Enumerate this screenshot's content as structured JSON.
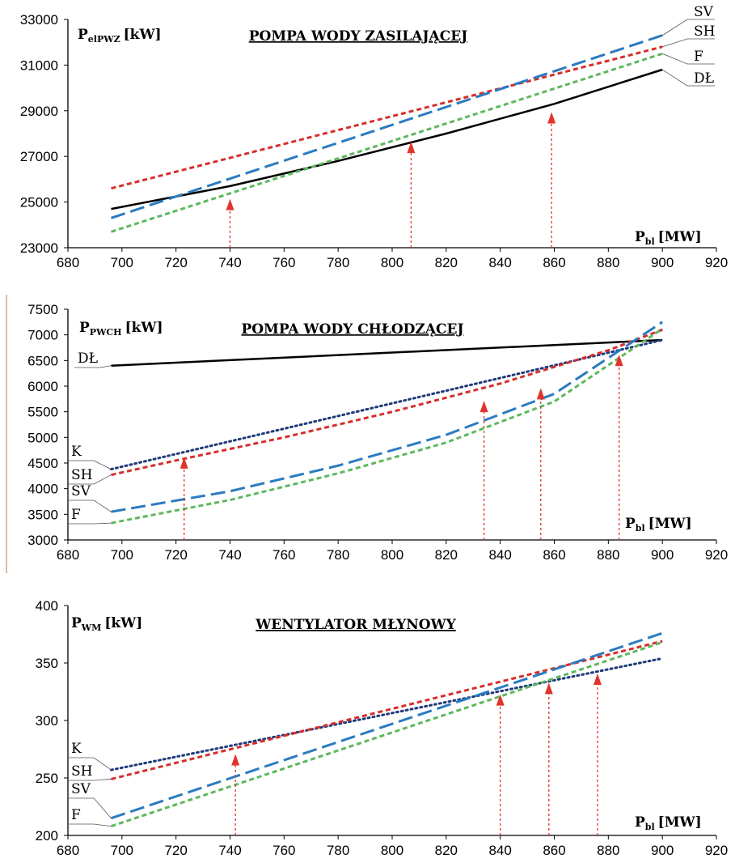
{
  "colors": {
    "DŁ": "#000000",
    "SH": "#d62e2a",
    "SV": "#2a7bc0",
    "F": "#5cb85c",
    "K": "#1f3a78",
    "arrow": "#e0342c"
  },
  "chart_data": [
    {
      "type": "line",
      "title": "POMPA WODY ZASILAJĄCEJ",
      "ylabel_main": "P",
      "ylabel_sub": "elPWZ",
      "ylabel_unit": "[kW]",
      "xlabel_main": "P",
      "xlabel_sub": "bl",
      "xlabel_unit": "[MW]",
      "xlim": [
        680,
        920
      ],
      "ylim": [
        23000,
        33000
      ],
      "xticks": [
        680,
        700,
        720,
        740,
        760,
        780,
        800,
        820,
        840,
        860,
        880,
        900,
        920
      ],
      "yticks": [
        23000,
        25000,
        27000,
        29000,
        31000,
        33000
      ],
      "grid": false,
      "series": [
        {
          "name": "DŁ",
          "style": "solid",
          "x": [
            696,
            740,
            780,
            820,
            860,
            900
          ],
          "y": [
            24700,
            25700,
            26800,
            28000,
            29300,
            30800
          ]
        },
        {
          "name": "SH",
          "style": "dash",
          "x": [
            696,
            900
          ],
          "y": [
            25600,
            31800
          ]
        },
        {
          "name": "SV",
          "style": "longdash",
          "x": [
            696,
            900
          ],
          "y": [
            24300,
            32300
          ]
        },
        {
          "name": "F",
          "style": "dash",
          "x": [
            696,
            900
          ],
          "y": [
            23700,
            31500
          ]
        }
      ],
      "legend_labels": [
        "SV",
        "SH",
        "F",
        "DŁ"
      ],
      "arrows": [
        {
          "x": 740,
          "y_top": 25000
        },
        {
          "x": 807,
          "y_top": 27500
        },
        {
          "x": 859,
          "y_top": 28800
        }
      ]
    },
    {
      "type": "line",
      "title": "POMPA WODY CHŁODZĄCEJ",
      "ylabel_main": "P",
      "ylabel_sub": "PWCH",
      "ylabel_unit": "[kW]",
      "xlabel_main": "P",
      "xlabel_sub": "bl",
      "xlabel_unit": "[MW]",
      "xlim": [
        680,
        920
      ],
      "ylim": [
        3000,
        7500
      ],
      "xticks": [
        680,
        700,
        720,
        740,
        760,
        780,
        800,
        820,
        840,
        860,
        880,
        900,
        920
      ],
      "yticks": [
        3000,
        3500,
        4000,
        4500,
        5000,
        5500,
        6000,
        6500,
        7000,
        7500
      ],
      "grid": false,
      "series": [
        {
          "name": "DŁ",
          "style": "solid",
          "x": [
            696,
            900
          ],
          "y": [
            6400,
            6900
          ]
        },
        {
          "name": "K",
          "style": "dot",
          "x": [
            696,
            900
          ],
          "y": [
            4380,
            6900
          ]
        },
        {
          "name": "SH",
          "style": "dash",
          "x": [
            696,
            720,
            760,
            800,
            840,
            880,
            900
          ],
          "y": [
            4270,
            4550,
            5000,
            5500,
            6050,
            6700,
            7100
          ]
        },
        {
          "name": "SV",
          "style": "longdash",
          "x": [
            696,
            740,
            780,
            820,
            860,
            900
          ],
          "y": [
            3550,
            3950,
            4450,
            5050,
            5850,
            7250
          ]
        },
        {
          "name": "F",
          "style": "dash",
          "x": [
            696,
            740,
            780,
            820,
            860,
            900
          ],
          "y": [
            3330,
            3780,
            4300,
            4900,
            5700,
            7120
          ]
        }
      ],
      "legend_labels": [
        "DŁ",
        "K",
        "SH",
        "SV",
        "F"
      ],
      "arrows": [
        {
          "x": 723,
          "y_top": 4550
        },
        {
          "x": 834,
          "y_top": 5650
        },
        {
          "x": 855,
          "y_top": 5900
        },
        {
          "x": 884,
          "y_top": 6550
        }
      ]
    },
    {
      "type": "line",
      "title": "WENTYLATOR MŁYNOWY",
      "ylabel_main": "P",
      "ylabel_sub": "WM",
      "ylabel_unit": "[kW]",
      "xlabel_main": "P",
      "xlabel_sub": "bl",
      "xlabel_unit": "[MW]",
      "xlim": [
        680,
        920
      ],
      "ylim": [
        200,
        400
      ],
      "xticks": [
        680,
        700,
        720,
        740,
        760,
        780,
        800,
        820,
        840,
        860,
        880,
        900,
        920
      ],
      "yticks": [
        200,
        250,
        300,
        350,
        400
      ],
      "grid": false,
      "series": [
        {
          "name": "K",
          "style": "dot",
          "x": [
            696,
            900
          ],
          "y": [
            257,
            354
          ]
        },
        {
          "name": "SH",
          "style": "dash",
          "x": [
            696,
            900
          ],
          "y": [
            249,
            369
          ]
        },
        {
          "name": "SV",
          "style": "longdash",
          "x": [
            696,
            900
          ],
          "y": [
            215,
            376
          ]
        },
        {
          "name": "F",
          "style": "dash",
          "x": [
            696,
            900
          ],
          "y": [
            208,
            368
          ]
        }
      ],
      "legend_labels": [
        "K",
        "SH",
        "SV",
        "F"
      ],
      "arrows": [
        {
          "x": 742,
          "y_top": 268
        },
        {
          "x": 840,
          "y_top": 320
        },
        {
          "x": 858,
          "y_top": 330
        },
        {
          "x": 876,
          "y_top": 338
        }
      ]
    }
  ]
}
